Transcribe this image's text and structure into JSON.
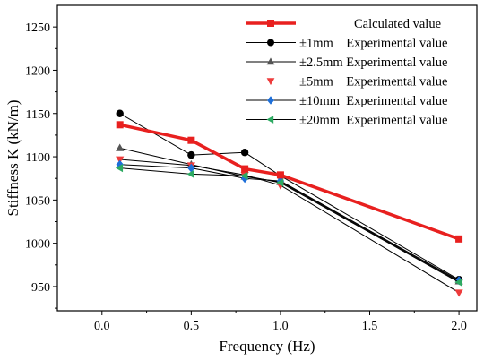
{
  "chart_data": {
    "type": "line",
    "xlabel": "Frequency (Hz)",
    "ylabel": "Stiffness K (kN/m)",
    "xlim": [
      -0.25,
      2.1
    ],
    "ylim": [
      922,
      1275
    ],
    "xticks": [
      0.0,
      0.5,
      1.0,
      1.5,
      2.0
    ],
    "xtick_labels": [
      "0.0",
      "0.5",
      "1.0",
      "1.5",
      "2.0"
    ],
    "yticks": [
      950,
      1000,
      1050,
      1100,
      1150,
      1200,
      1250
    ],
    "ytick_labels": [
      "950",
      "1000",
      "1050",
      "1100",
      "1150",
      "1200",
      "1250"
    ],
    "grid": false,
    "legend_position": "top-right",
    "x": [
      0.1,
      0.5,
      0.8,
      1.0,
      2.0
    ],
    "series": [
      {
        "name": "Calculated value",
        "values": [
          1137,
          1119,
          1086,
          1079,
          1005
        ],
        "color": "#e8201f",
        "marker": "square",
        "line_width": 3.5
      },
      {
        "name": "±1mm    Experimental value",
        "values": [
          1150,
          1102,
          1105,
          1078,
          958
        ],
        "color": "#000000",
        "marker": "circle",
        "line_width": 1
      },
      {
        "name": "±2.5mm Experimental value",
        "values": [
          1110,
          1091,
          1077,
          1071,
          956
        ],
        "color": "#555555",
        "marker": "triangle-up",
        "line_width": 1
      },
      {
        "name": "±5mm    Experimental value",
        "values": [
          1097,
          1090,
          1079,
          1067,
          943
        ],
        "color": "#ee3b3b",
        "marker": "triangle-down",
        "line_width": 1
      },
      {
        "name": "±10mm  Experimental value",
        "values": [
          1091,
          1087,
          1075,
          1072,
          957
        ],
        "color": "#1e6fd9",
        "marker": "diamond",
        "line_width": 1
      },
      {
        "name": "±20mm  Experimental value",
        "values": [
          1087,
          1080,
          1078,
          1070,
          955
        ],
        "color": "#2daa62",
        "marker": "triangle-left",
        "line_width": 1
      }
    ]
  }
}
